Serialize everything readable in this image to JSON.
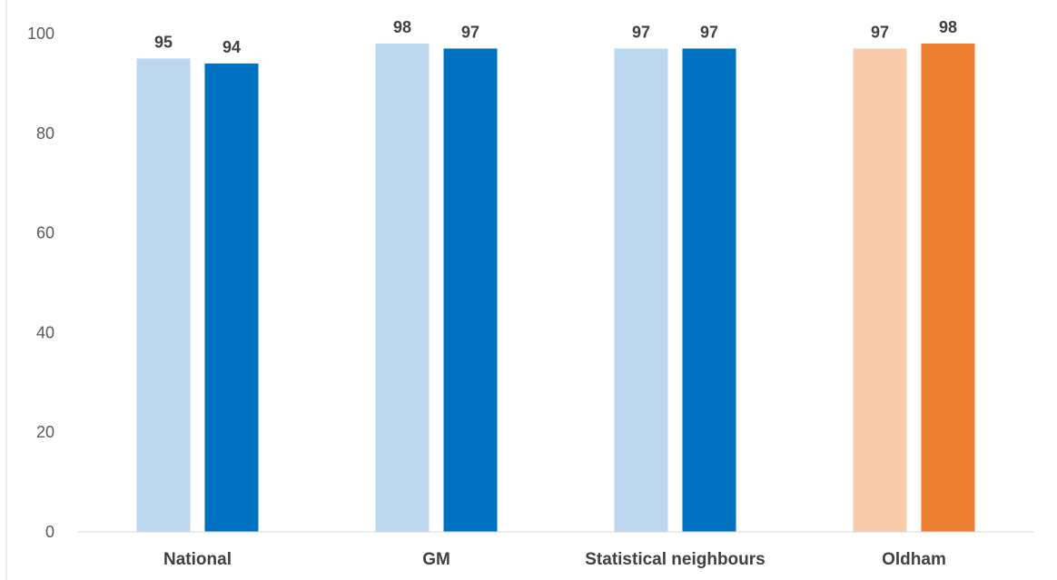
{
  "chart_data": {
    "type": "bar",
    "title": "",
    "xlabel": "",
    "ylabel": "",
    "ylim": [
      0,
      100
    ],
    "yticks": [
      0,
      20,
      40,
      60,
      80,
      100
    ],
    "grid": false,
    "legend": "none",
    "categories": [
      "National",
      "GM",
      "Statistical neighbours",
      "Oldham"
    ],
    "series": [
      {
        "values": [
          95,
          98,
          97,
          97
        ]
      },
      {
        "values": [
          94,
          97,
          97,
          98
        ]
      }
    ],
    "colors": [
      [
        "#BDD7EE",
        "#0070C0"
      ],
      [
        "#BDD7EE",
        "#0070C0"
      ],
      [
        "#BDD7EE",
        "#0070C0"
      ],
      [
        "#F8CBAD",
        "#ED7D31"
      ]
    ],
    "axis_color": "#D9D9D9"
  }
}
